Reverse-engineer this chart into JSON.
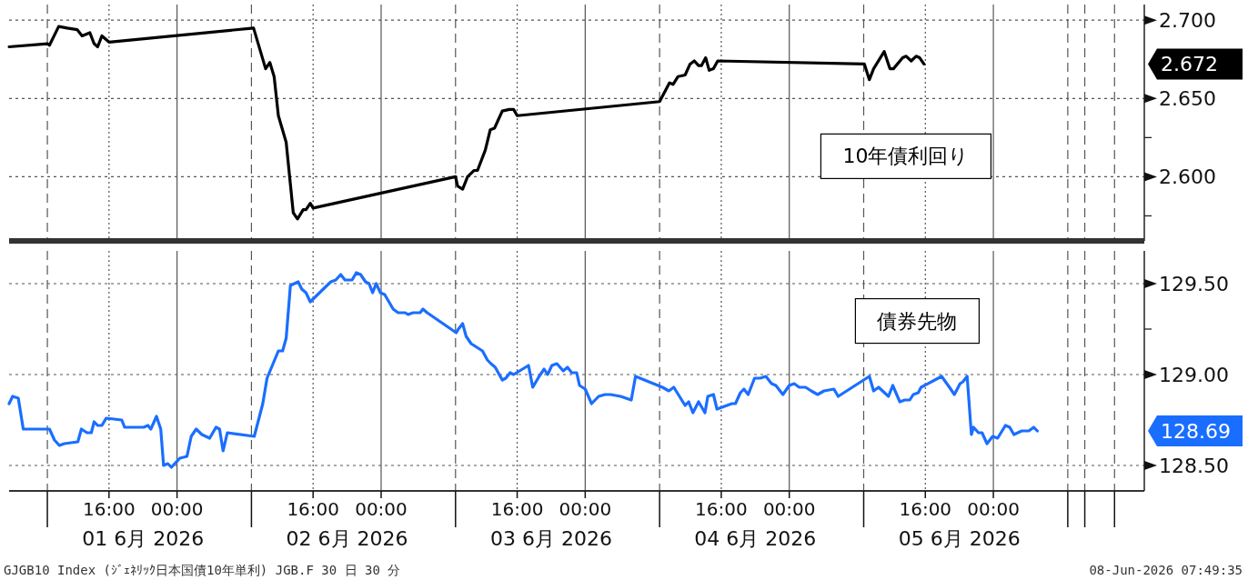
{
  "chart_data": [
    {
      "type": "line",
      "xlim": [
        "2026-06-01T04:15",
        "2026-06-06T17:45"
      ],
      "ylim": [
        2.559,
        2.71
      ],
      "xticks": [
        {
          "value": "2026-06-01T08:45",
          "label": null
        },
        {
          "value": "2026-06-01T16:00",
          "label": null
        },
        {
          "value": "2026-06-02T00:00",
          "label": null
        },
        {
          "value": "2026-06-02T08:45",
          "label": null
        },
        {
          "value": "2026-06-02T16:00",
          "label": null
        },
        {
          "value": "2026-06-03T00:00",
          "label": null
        },
        {
          "value": "2026-06-03T08:45",
          "label": null
        },
        {
          "value": "2026-06-03T16:00",
          "label": null
        },
        {
          "value": "2026-06-04T00:00",
          "label": null
        },
        {
          "value": "2026-06-04T08:45",
          "label": null
        },
        {
          "value": "2026-06-04T16:00",
          "label": null
        },
        {
          "value": "2026-06-05T00:00",
          "label": null
        },
        {
          "value": "2026-06-05T08:45",
          "label": null
        },
        {
          "value": "2026-06-05T16:00",
          "label": null
        },
        {
          "value": "2026-06-06T00:00",
          "label": null
        },
        {
          "value": "2026-06-06T08:45",
          "label": null
        },
        {
          "value": "2026-06-06T10:45",
          "label": null
        },
        {
          "value": "2026-06-06T14:15",
          "label": null
        }
      ],
      "yticks": [
        {
          "value": 2.575,
          "label": null
        },
        {
          "value": 2.6,
          "label": "2.600"
        },
        {
          "value": 2.625,
          "label": null
        },
        {
          "value": 2.65,
          "label": "2.650"
        },
        {
          "value": 2.7,
          "label": "2.700"
        }
      ],
      "tick_labels": "y",
      "grid": true,
      "line_style": "solid",
      "series": [
        {
          "name": "10年債利回り",
          "color": "#000000",
          "x": [
            "2026-06-01T04:15",
            "2026-06-01T08:45",
            "2026-06-01T09:00",
            "2026-06-01T10:05",
            "2026-06-01T11:05",
            "2026-06-01T12:15",
            "2026-06-01T12:50",
            "2026-06-01T13:45",
            "2026-06-01T14:15",
            "2026-06-01T14:40",
            "2026-06-01T15:10",
            "2026-06-01T16:00",
            "2026-06-02T09:00",
            "2026-06-02T10:25",
            "2026-06-02T10:55",
            "2026-06-02T11:25",
            "2026-06-02T11:55",
            "2026-06-02T12:50",
            "2026-06-02T13:40",
            "2026-06-02T14:10",
            "2026-06-02T14:50",
            "2026-06-02T15:10",
            "2026-06-02T15:40",
            "2026-06-02T16:00",
            "2026-06-03T08:45",
            "2026-06-03T09:00",
            "2026-06-03T09:35",
            "2026-06-03T10:10",
            "2026-06-03T10:55",
            "2026-06-03T11:20",
            "2026-06-03T12:15",
            "2026-06-03T12:50",
            "2026-06-03T13:20",
            "2026-06-03T14:15",
            "2026-06-03T15:05",
            "2026-06-03T15:35",
            "2026-06-03T16:00",
            "2026-06-04T08:45",
            "2026-06-04T09:55",
            "2026-06-04T10:20",
            "2026-06-04T10:55",
            "2026-06-04T11:45",
            "2026-06-04T12:20",
            "2026-06-04T12:50",
            "2026-06-04T13:20",
            "2026-06-04T13:40",
            "2026-06-04T14:10",
            "2026-06-04T14:35",
            "2026-06-04T15:05",
            "2026-06-04T15:35",
            "2026-06-05T08:50",
            "2026-06-05T09:25",
            "2026-06-05T09:55",
            "2026-06-05T11:10",
            "2026-06-05T11:50",
            "2026-06-05T12:15",
            "2026-06-05T13:20",
            "2026-06-05T13:45",
            "2026-06-05T14:20",
            "2026-06-05T14:55",
            "2026-06-05T15:20",
            "2026-06-05T15:50"
          ],
          "values": [
            2.683,
            2.685,
            2.684,
            2.696,
            2.695,
            2.694,
            2.69,
            2.692,
            2.685,
            2.683,
            2.69,
            2.686,
            2.695,
            2.669,
            2.673,
            2.664,
            2.639,
            2.622,
            2.577,
            2.573,
            2.579,
            2.579,
            2.583,
            2.58,
            2.6,
            2.594,
            2.592,
            2.6,
            2.604,
            2.604,
            2.617,
            2.63,
            2.631,
            2.642,
            2.643,
            2.643,
            2.639,
            2.648,
            2.66,
            2.659,
            2.664,
            2.665,
            2.672,
            2.674,
            2.671,
            2.671,
            2.676,
            2.668,
            2.669,
            2.674,
            2.672,
            2.662,
            2.669,
            2.68,
            2.669,
            2.669,
            2.676,
            2.677,
            2.674,
            2.677,
            2.676,
            2.672
          ]
        }
      ],
      "annotations": [
        "2.672"
      ]
    },
    {
      "type": "line",
      "xlim": [
        "2026-06-01T04:15",
        "2026-06-06T17:45"
      ],
      "ylim": [
        128.36,
        129.68
      ],
      "xticks": [
        {
          "value": "2026-06-01T08:45",
          "label": null
        },
        {
          "value": "2026-06-01T16:00",
          "label": "16:00"
        },
        {
          "value": "2026-06-02T00:00",
          "label": "00:00"
        },
        {
          "value": "2026-06-02T08:45",
          "label": null
        },
        {
          "value": "2026-06-02T16:00",
          "label": "16:00"
        },
        {
          "value": "2026-06-03T00:00",
          "label": "00:00"
        },
        {
          "value": "2026-06-03T08:45",
          "label": null
        },
        {
          "value": "2026-06-03T16:00",
          "label": "16:00"
        },
        {
          "value": "2026-06-04T00:00",
          "label": "00:00"
        },
        {
          "value": "2026-06-04T08:45",
          "label": null
        },
        {
          "value": "2026-06-04T16:00",
          "label": "16:00"
        },
        {
          "value": "2026-06-05T00:00",
          "label": "00:00"
        },
        {
          "value": "2026-06-05T08:45",
          "label": null
        },
        {
          "value": "2026-06-05T16:00",
          "label": "16:00"
        },
        {
          "value": "2026-06-06T00:00",
          "label": "00:00"
        },
        {
          "value": "2026-06-06T08:45",
          "label": null
        },
        {
          "value": "2026-06-06T10:45",
          "label": null
        },
        {
          "value": "2026-06-06T14:15",
          "label": null
        }
      ],
      "x2lim": [
        "2026-06-01T04:15",
        "2026-06-06T17:45"
      ],
      "x2ticks": [
        {
          "value": "2026-06-01T20:00",
          "label": "01 6月 2026"
        },
        {
          "value": "2026-06-02T20:00",
          "label": "02 6月 2026"
        },
        {
          "value": "2026-06-03T20:00",
          "label": "03 6月 2026"
        },
        {
          "value": "2026-06-04T20:00",
          "label": "04 6月 2026"
        },
        {
          "value": "2026-06-05T20:00",
          "label": "05 6月 2026"
        }
      ],
      "yticks": [
        {
          "value": 128.5,
          "label": "128.50"
        },
        {
          "value": 129.0,
          "label": "129.00"
        },
        {
          "value": 129.25,
          "label": null
        },
        {
          "value": 129.5,
          "label": "129.50"
        }
      ],
      "grid": true,
      "line_style": "solid",
      "series": [
        {
          "name": "債券先物",
          "color": "#1a6eff",
          "x": [
            "2026-06-01T04:15",
            "2026-06-01T04:40",
            "2026-06-01T05:20",
            "2026-06-01T05:55",
            "2026-06-01T09:00",
            "2026-06-01T09:35",
            "2026-06-01T10:10",
            "2026-06-01T10:45",
            "2026-06-01T12:20",
            "2026-06-01T12:45",
            "2026-06-01T13:25",
            "2026-06-01T13:55",
            "2026-06-01T14:15",
            "2026-06-01T14:40",
            "2026-06-01T15:10",
            "2026-06-01T15:40",
            "2026-06-01T17:30",
            "2026-06-01T17:50",
            "2026-06-01T20:05",
            "2026-06-01T20:35",
            "2026-06-01T20:55",
            "2026-06-01T21:35",
            "2026-06-01T22:05",
            "2026-06-01T22:25",
            "2026-06-01T22:55",
            "2026-06-01T23:20",
            "2026-06-02T00:20",
            "2026-06-02T01:10",
            "2026-06-02T01:40",
            "2026-06-02T02:15",
            "2026-06-02T02:55",
            "2026-06-02T03:50",
            "2026-06-02T04:35",
            "2026-06-02T05:00",
            "2026-06-02T05:25",
            "2026-06-02T05:55",
            "2026-06-02T09:05",
            "2026-06-02T10:05",
            "2026-06-02T10:35",
            "2026-06-02T11:55",
            "2026-06-02T12:25",
            "2026-06-02T12:50",
            "2026-06-02T13:20",
            "2026-06-02T14:15",
            "2026-06-02T14:40",
            "2026-06-02T15:10",
            "2026-06-02T15:40",
            "2026-06-02T17:25",
            "2026-06-02T18:05",
            "2026-06-02T18:40",
            "2026-06-02T19:15",
            "2026-06-02T19:45",
            "2026-06-02T20:35",
            "2026-06-02T21:05",
            "2026-06-02T21:35",
            "2026-06-02T22:10",
            "2026-06-02T22:35",
            "2026-06-02T23:00",
            "2026-06-02T23:25",
            "2026-06-02T23:55",
            "2026-06-03T00:25",
            "2026-06-03T01:25",
            "2026-06-03T02:00",
            "2026-06-03T02:50",
            "2026-06-03T03:10",
            "2026-06-03T03:45",
            "2026-06-03T04:35",
            "2026-06-03T04:55",
            "2026-06-03T05:25",
            "2026-06-03T08:50",
            "2026-06-03T09:05",
            "2026-06-03T09:35",
            "2026-06-03T10:00",
            "2026-06-03T10:35",
            "2026-06-03T11:55",
            "2026-06-03T12:30",
            "2026-06-03T12:55",
            "2026-06-03T13:25",
            "2026-06-03T14:15",
            "2026-06-03T14:40",
            "2026-06-03T15:10",
            "2026-06-03T15:35",
            "2026-06-03T17:20",
            "2026-06-03T17:50",
            "2026-06-03T18:35",
            "2026-06-03T19:10",
            "2026-06-03T19:35",
            "2026-06-03T20:05",
            "2026-06-03T20:40",
            "2026-06-03T21:25",
            "2026-06-03T21:55",
            "2026-06-03T22:25",
            "2026-06-03T23:00",
            "2026-06-03T23:20",
            "2026-06-04T00:00",
            "2026-06-04T00:45",
            "2026-06-04T01:35",
            "2026-06-04T02:20",
            "2026-06-04T03:00",
            "2026-06-04T04:10",
            "2026-06-04T05:25",
            "2026-06-04T05:55",
            "2026-06-04T09:05",
            "2026-06-04T09:50",
            "2026-06-04T10:25",
            "2026-06-04T11:45",
            "2026-06-04T12:10",
            "2026-06-04T12:40",
            "2026-06-04T13:20",
            "2026-06-04T14:05",
            "2026-06-04T14:25",
            "2026-06-04T15:05",
            "2026-06-04T15:30",
            "2026-06-04T17:15",
            "2026-06-04T17:40",
            "2026-06-04T18:15",
            "2026-06-04T18:40",
            "2026-06-04T19:10",
            "2026-06-04T19:55",
            "2026-06-04T20:35",
            "2026-06-04T21:15",
            "2026-06-04T21:55",
            "2026-06-04T22:25",
            "2026-06-04T23:15",
            "2026-06-05T00:00",
            "2026-06-05T00:35",
            "2026-06-05T01:10",
            "2026-06-05T01:55",
            "2026-06-05T02:35",
            "2026-06-05T03:20",
            "2026-06-05T04:05",
            "2026-06-05T05:15",
            "2026-06-05T05:45",
            "2026-06-05T09:25",
            "2026-06-05T09:55",
            "2026-06-05T10:30",
            "2026-06-05T11:40",
            "2026-06-05T12:10",
            "2026-06-05T13:00",
            "2026-06-05T13:35",
            "2026-06-05T14:10",
            "2026-06-05T14:35",
            "2026-06-05T15:10",
            "2026-06-05T15:30",
            "2026-06-05T17:55",
            "2026-06-05T18:50",
            "2026-06-05T19:25",
            "2026-06-05T20:05",
            "2026-06-05T20:25",
            "2026-06-05T20:55",
            "2026-06-05T21:25",
            "2026-06-05T21:40",
            "2026-06-05T22:15",
            "2026-06-05T22:40",
            "2026-06-05T23:15",
            "2026-06-05T23:55",
            "2026-06-06T00:30",
            "2026-06-06T01:25",
            "2026-06-06T01:55",
            "2026-06-06T02:25",
            "2026-06-06T03:20",
            "2026-06-06T04:10",
            "2026-06-06T04:45",
            "2026-06-06T05:10"
          ],
          "values": [
            128.84,
            128.88,
            128.87,
            128.7,
            128.7,
            128.64,
            128.61,
            128.62,
            128.63,
            128.7,
            128.68,
            128.68,
            128.74,
            128.72,
            128.72,
            128.76,
            128.75,
            128.71,
            128.71,
            128.72,
            128.7,
            128.77,
            128.7,
            128.5,
            128.51,
            128.49,
            128.54,
            128.55,
            128.66,
            128.7,
            128.67,
            128.65,
            128.71,
            128.7,
            128.58,
            128.68,
            128.66,
            128.84,
            128.98,
            129.13,
            129.13,
            129.2,
            129.49,
            129.51,
            129.47,
            129.45,
            129.4,
            129.48,
            129.51,
            129.52,
            129.55,
            129.52,
            129.52,
            129.56,
            129.55,
            129.51,
            129.5,
            129.45,
            129.5,
            129.45,
            129.44,
            129.36,
            129.34,
            129.34,
            129.33,
            129.34,
            129.34,
            129.36,
            129.34,
            129.23,
            129.25,
            129.28,
            129.21,
            129.17,
            129.13,
            129.08,
            129.06,
            129.04,
            128.97,
            128.98,
            129.01,
            129.0,
            129.05,
            128.93,
            128.99,
            129.03,
            129.0,
            129.05,
            129.06,
            129.02,
            129.04,
            129.01,
            129.01,
            128.94,
            128.92,
            128.84,
            128.88,
            128.89,
            128.89,
            128.88,
            128.86,
            128.99,
            128.93,
            128.91,
            128.93,
            128.83,
            128.85,
            128.79,
            128.85,
            128.79,
            128.88,
            128.89,
            128.81,
            128.84,
            128.84,
            128.9,
            128.92,
            128.89,
            128.98,
            128.98,
            128.99,
            128.95,
            128.94,
            128.89,
            128.94,
            128.95,
            128.93,
            128.93,
            128.91,
            128.89,
            128.91,
            128.92,
            128.88,
            128.99,
            128.91,
            128.93,
            128.88,
            128.94,
            128.85,
            128.86,
            128.86,
            128.89,
            128.9,
            128.93,
            128.99,
            128.93,
            128.89,
            128.95,
            128.96,
            128.99,
            128.67,
            128.71,
            128.68,
            128.68,
            128.62,
            128.66,
            128.65,
            128.72,
            128.71,
            128.67,
            128.69,
            128.69,
            128.71,
            128.69
          ]
        }
      ],
      "annotations": [
        "128.69",
        "GJGB10 Index (ｼﾞｪﾈﾘｯｸ日本国債10年単利) JGB.F 30 日 30 分",
        "08-Jun-2026 07:49:35"
      ]
    }
  ]
}
